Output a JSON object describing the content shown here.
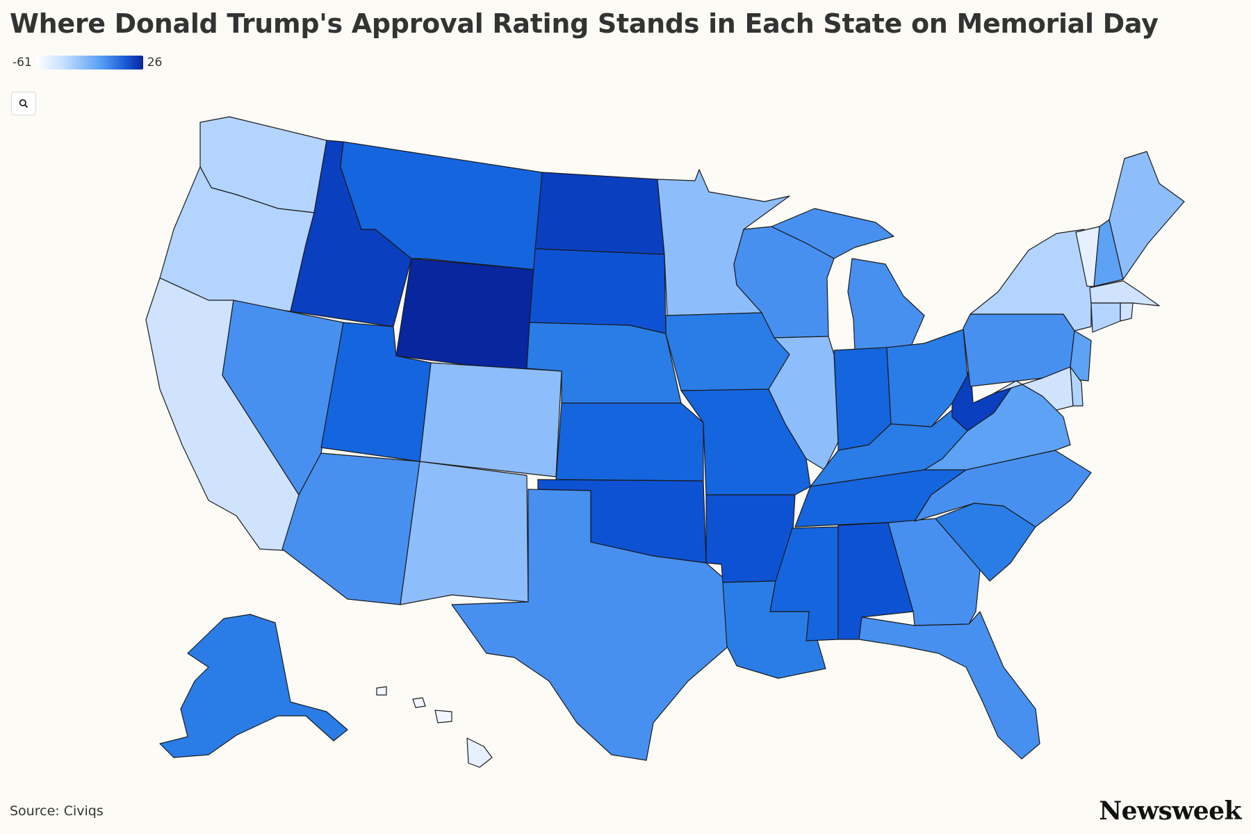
{
  "title": "Where Donald Trump's Approval Rating Stands in Each State on Memorial Day",
  "legend": {
    "min_label": "-61",
    "max_label": "26",
    "low_color": "#ffffff",
    "high_color": "#08269e"
  },
  "search_icon": "search-icon",
  "source": "Source: Civiqs",
  "logo": "Newsweek",
  "colors": {
    "c1": "#08269e",
    "c2": "#0a3fbf",
    "c3": "#0e52d4",
    "c4": "#1565de",
    "c5": "#2a7de6",
    "c6": "#4890f0",
    "c7": "#5da2f5",
    "c8": "#8ebdfb",
    "c9": "#b3d4fe",
    "c10": "#cfe3ff",
    "c11": "#e6f0ff",
    "c12": "#f1f6ff"
  }
}
